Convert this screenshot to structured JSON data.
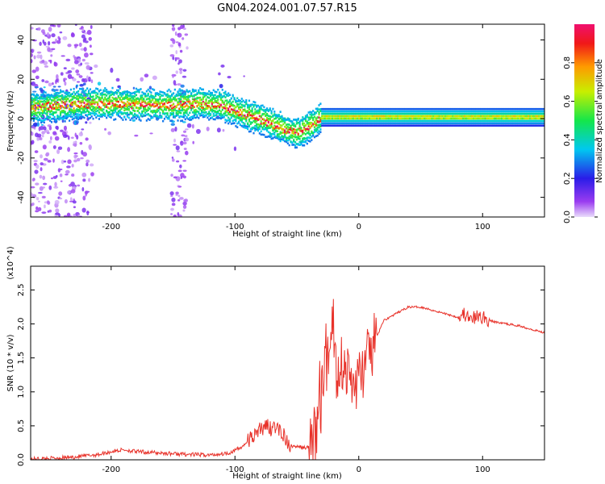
{
  "figure": {
    "title": "GN04.2024.001.07.57.R15",
    "colors": {
      "line": "#e8322a",
      "axis": "#000000",
      "background": "#ffffff"
    }
  },
  "chart_data": [
    {
      "type": "heatmap",
      "xlabel": "Height of straight line (km)",
      "ylabel": "Frequency (Hz)",
      "xlim": [
        -265,
        150
      ],
      "ylim": [
        -50,
        48
      ],
      "xticks": [
        -200,
        -100,
        0,
        100
      ],
      "yticks": [
        -40,
        -20,
        0,
        20,
        40
      ],
      "colorbar": {
        "label": "Normalized spectral amplitude",
        "range": [
          0,
          1
        ],
        "ticks": [
          "0.0",
          "0.2",
          "0.4",
          "0.6",
          "0.8"
        ],
        "colormap": "rainbow (violet → blue → cyan → green → yellow → red → magenta)"
      },
      "ridge": {
        "description": "dominant frequency track",
        "x": [
          -260,
          -220,
          -200,
          -150,
          -130,
          -110,
          -90,
          -75,
          -60,
          -50,
          -40,
          -30,
          -20,
          0,
          50,
          100,
          150
        ],
        "frequency": [
          6,
          8,
          8,
          7,
          8,
          7,
          2,
          -1,
          -5,
          -7,
          -4,
          1,
          1,
          1,
          1,
          1,
          1
        ]
      }
    },
    {
      "type": "line",
      "xlabel": "Height of straight line (km)",
      "ylabel": "SNR (10 * v/v)",
      "y_multiplier": "(x10^4)",
      "xlim": [
        -265,
        150
      ],
      "ylim": [
        0,
        2.85
      ],
      "xticks": [
        -200,
        -100,
        0,
        100
      ],
      "yticks": [
        "0.0",
        "0.5",
        "1.0",
        "1.5",
        "2.0",
        "2.5"
      ],
      "series": [
        {
          "x": [
            -265,
            -250,
            -230,
            -210,
            -200,
            -190,
            -180,
            -160,
            -140,
            -120,
            -105,
            -95,
            -85,
            -75,
            -65,
            -55,
            -45,
            -38,
            -35,
            -30,
            -25,
            -21,
            -18,
            -15,
            -10,
            -5,
            0,
            10,
            20,
            30,
            40,
            50,
            60,
            70,
            80,
            85,
            90,
            95,
            100,
            105,
            110,
            120,
            130,
            140,
            150
          ],
          "y": [
            0.01,
            0.02,
            0.04,
            0.08,
            0.12,
            0.15,
            0.12,
            0.1,
            0.08,
            0.07,
            0.1,
            0.18,
            0.35,
            0.5,
            0.45,
            0.2,
            0.18,
            0.18,
            0.4,
            1.0,
            1.5,
            2.2,
            1.2,
            1.5,
            1.3,
            1.1,
            1.2,
            1.6,
            2.05,
            2.15,
            2.25,
            2.25,
            2.2,
            2.15,
            2.1,
            2.15,
            2.05,
            2.1,
            2.1,
            2.05,
            2.03,
            2.0,
            1.97,
            1.92,
            1.87
          ]
        }
      ]
    }
  ]
}
